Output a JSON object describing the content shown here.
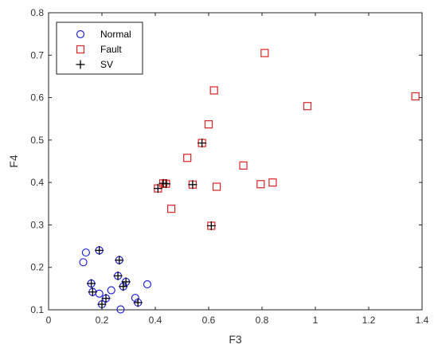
{
  "chart_data": {
    "type": "scatter",
    "title": "",
    "xlabel": "F3",
    "ylabel": "F4",
    "xlim": [
      0,
      1.4
    ],
    "ylim": [
      0.1,
      0.8
    ],
    "xticks": [
      0,
      0.2,
      0.4,
      0.6,
      0.8,
      1,
      1.2,
      1.4
    ],
    "xtick_labels": [
      "0",
      "0.2",
      "0.4",
      "0.6",
      "0.8",
      "1",
      "1.2",
      "1.4"
    ],
    "yticks": [
      0.1,
      0.2,
      0.3,
      0.4,
      0.5,
      0.6,
      0.7,
      0.8
    ],
    "ytick_labels": [
      "0.1",
      "0.2",
      "0.3",
      "0.4",
      "0.5",
      "0.6",
      "0.7",
      "0.8"
    ],
    "grid": false,
    "legend_position": "top-left",
    "series": [
      {
        "name": "Normal",
        "marker": "circle",
        "color": "#2222dd",
        "points": [
          [
            0.14,
            0.235
          ],
          [
            0.13,
            0.212
          ],
          [
            0.19,
            0.24
          ],
          [
            0.265,
            0.217
          ],
          [
            0.16,
            0.162
          ],
          [
            0.165,
            0.142
          ],
          [
            0.19,
            0.138
          ],
          [
            0.235,
            0.146
          ],
          [
            0.26,
            0.18
          ],
          [
            0.29,
            0.166
          ],
          [
            0.28,
            0.155
          ],
          [
            0.37,
            0.16
          ],
          [
            0.215,
            0.127
          ],
          [
            0.2,
            0.113
          ],
          [
            0.325,
            0.128
          ],
          [
            0.335,
            0.117
          ],
          [
            0.27,
            0.101
          ]
        ]
      },
      {
        "name": "Fault",
        "marker": "square",
        "color": "#dd2222",
        "points": [
          [
            0.81,
            0.705
          ],
          [
            0.62,
            0.617
          ],
          [
            0.97,
            0.58
          ],
          [
            1.375,
            0.603
          ],
          [
            0.6,
            0.537
          ],
          [
            0.575,
            0.493
          ],
          [
            0.52,
            0.458
          ],
          [
            0.73,
            0.44
          ],
          [
            0.43,
            0.398
          ],
          [
            0.44,
            0.397
          ],
          [
            0.41,
            0.386
          ],
          [
            0.54,
            0.395
          ],
          [
            0.63,
            0.39
          ],
          [
            0.795,
            0.396
          ],
          [
            0.84,
            0.4
          ],
          [
            0.46,
            0.338
          ],
          [
            0.61,
            0.298
          ]
        ]
      },
      {
        "name": "SV",
        "marker": "plus",
        "color": "#000000",
        "points": [
          [
            0.19,
            0.24
          ],
          [
            0.265,
            0.217
          ],
          [
            0.16,
            0.162
          ],
          [
            0.165,
            0.142
          ],
          [
            0.26,
            0.18
          ],
          [
            0.29,
            0.166
          ],
          [
            0.28,
            0.155
          ],
          [
            0.215,
            0.127
          ],
          [
            0.2,
            0.113
          ],
          [
            0.335,
            0.117
          ],
          [
            0.575,
            0.493
          ],
          [
            0.43,
            0.398
          ],
          [
            0.44,
            0.397
          ],
          [
            0.41,
            0.386
          ],
          [
            0.54,
            0.395
          ],
          [
            0.61,
            0.298
          ]
        ]
      }
    ]
  }
}
